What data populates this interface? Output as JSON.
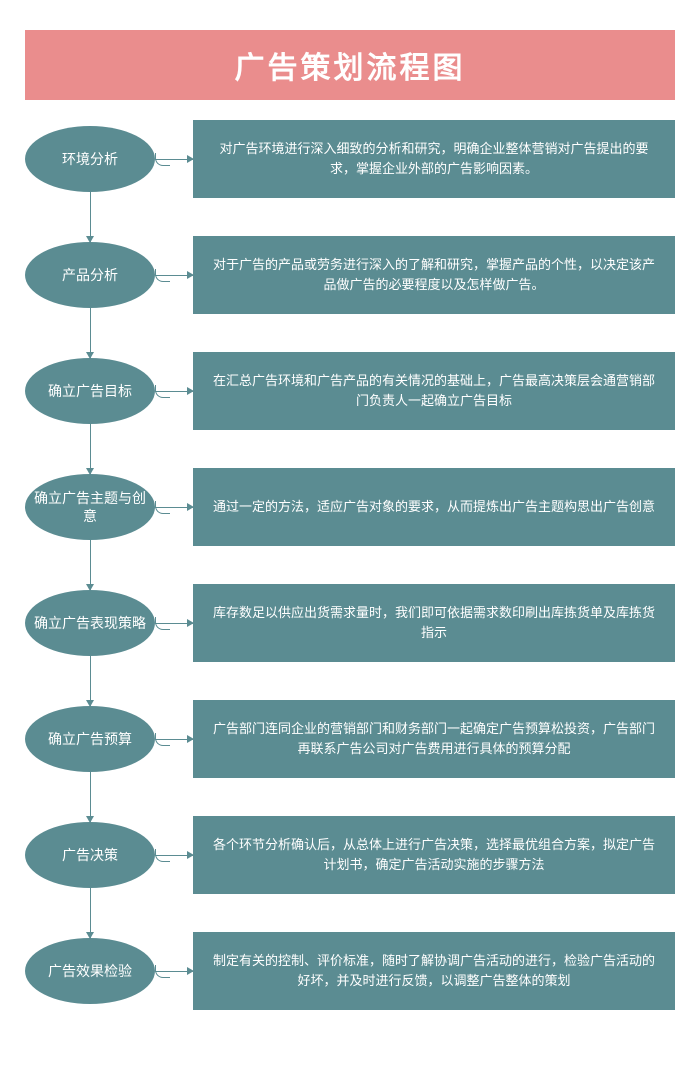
{
  "title": "广告策划流程图",
  "colors": {
    "title_bg": "#ea8d8d",
    "title_text": "#ffffff",
    "node_fill": "#5b8c92",
    "node_text": "#ffffff",
    "desc_fill": "#5b8c92",
    "desc_text": "#ffffff",
    "arrow": "#5b8c92",
    "page_bg": "#ffffff"
  },
  "typography": {
    "title_fontsize": 30,
    "title_weight": "bold",
    "node_fontsize": 14,
    "desc_fontsize": 13
  },
  "layout": {
    "ellipse_w": 130,
    "ellipse_h": 66,
    "desc_h": 78,
    "row_gap": 38,
    "connector_len": 38
  },
  "flowchart": {
    "type": "flowchart",
    "steps": [
      {
        "node": "环境分析",
        "desc": "对广告环境进行深入细致的分析和研究，明确企业整体营销对广告提出的要求，掌握企业外部的广告影响因素。"
      },
      {
        "node": "产品分析",
        "desc": "对于广告的产品或劳务进行深入的了解和研究，掌握产品的个性，以决定该产品做广告的必要程度以及怎样做广告。"
      },
      {
        "node": "确立广告目标",
        "desc": "在汇总广告环境和广告产品的有关情况的基础上，广告最高决策层会通营销部门负责人一起确立广告目标"
      },
      {
        "node": "确立广告主题与创意",
        "desc": "通过一定的方法，适应广告对象的要求，从而提炼出广告主题构思出广告创意"
      },
      {
        "node": "确立广告表现策略",
        "desc": "库存数足以供应出货需求量时，我们即可依据需求数印刷出库拣货单及库拣货指示"
      },
      {
        "node": "确立广告预算",
        "desc": "广告部门连同企业的营销部门和财务部门一起确定广告预算松投资，广告部门再联系广告公司对广告费用进行具体的预算分配"
      },
      {
        "node": "广告决策",
        "desc": "各个环节分析确认后，从总体上进行广告决策，选择最优组合方案，拟定广告计划书，确定广告活动实施的步骤方法"
      },
      {
        "node": "广告效果检验",
        "desc": "制定有关的控制、评价标准，随时了解协调广告活动的进行，检验广告活动的好坏，并及时进行反馈，以调整广告整体的策划"
      }
    ]
  }
}
